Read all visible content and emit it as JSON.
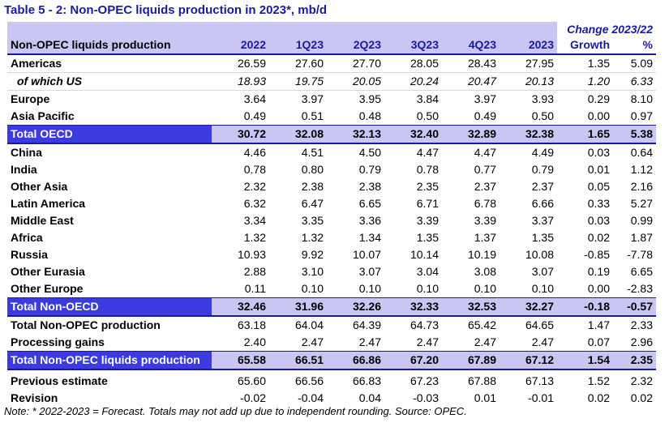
{
  "title": "Table 5 - 2: Non-OPEC liquids production in 2023*, mb/d",
  "header": {
    "change_label": "Change 2023/22",
    "row_label": "Non-OPEC liquids production",
    "columns": [
      "2022",
      "1Q23",
      "2Q23",
      "3Q23",
      "4Q23",
      "2023",
      "Growth",
      "%"
    ]
  },
  "rows": [
    {
      "label": "Americas",
      "values": [
        "26.59",
        "27.60",
        "27.70",
        "28.05",
        "28.43",
        "27.95",
        "1.35",
        "5.09"
      ],
      "kind": "data"
    },
    {
      "label": "of which US",
      "values": [
        "18.93",
        "19.75",
        "20.05",
        "20.24",
        "20.47",
        "20.13",
        "1.20",
        "6.33"
      ],
      "kind": "sub"
    },
    {
      "label": "Europe",
      "values": [
        "3.64",
        "3.97",
        "3.95",
        "3.84",
        "3.97",
        "3.93",
        "0.29",
        "8.10"
      ],
      "kind": "data"
    },
    {
      "label": "Asia Pacific",
      "values": [
        "0.49",
        "0.51",
        "0.48",
        "0.50",
        "0.49",
        "0.50",
        "0.00",
        "0.97"
      ],
      "kind": "data"
    },
    {
      "label": "Total OECD",
      "values": [
        "30.72",
        "32.08",
        "32.13",
        "32.40",
        "32.89",
        "32.38",
        "1.65",
        "5.38"
      ],
      "kind": "total"
    },
    {
      "label": "China",
      "values": [
        "4.46",
        "4.51",
        "4.50",
        "4.47",
        "4.47",
        "4.49",
        "0.03",
        "0.64"
      ],
      "kind": "data"
    },
    {
      "label": "India",
      "values": [
        "0.78",
        "0.80",
        "0.79",
        "0.78",
        "0.77",
        "0.79",
        "0.01",
        "1.12"
      ],
      "kind": "data"
    },
    {
      "label": "Other Asia",
      "values": [
        "2.32",
        "2.38",
        "2.38",
        "2.35",
        "2.37",
        "2.37",
        "0.05",
        "2.16"
      ],
      "kind": "data"
    },
    {
      "label": "Latin America",
      "values": [
        "6.32",
        "6.47",
        "6.65",
        "6.71",
        "6.78",
        "6.66",
        "0.33",
        "5.27"
      ],
      "kind": "data"
    },
    {
      "label": "Middle East",
      "values": [
        "3.34",
        "3.35",
        "3.36",
        "3.39",
        "3.39",
        "3.37",
        "0.03",
        "0.99"
      ],
      "kind": "data"
    },
    {
      "label": "Africa",
      "values": [
        "1.32",
        "1.32",
        "1.34",
        "1.35",
        "1.37",
        "1.35",
        "0.02",
        "1.87"
      ],
      "kind": "data"
    },
    {
      "label": "Russia",
      "values": [
        "10.93",
        "9.92",
        "10.07",
        "10.14",
        "10.19",
        "10.08",
        "-0.85",
        "-7.78"
      ],
      "kind": "data"
    },
    {
      "label": "Other Eurasia",
      "values": [
        "2.88",
        "3.10",
        "3.07",
        "3.04",
        "3.08",
        "3.07",
        "0.19",
        "6.65"
      ],
      "kind": "data"
    },
    {
      "label": "Other Europe",
      "values": [
        "0.11",
        "0.10",
        "0.10",
        "0.10",
        "0.10",
        "0.10",
        "0.00",
        "-2.83"
      ],
      "kind": "data"
    },
    {
      "label": "Total Non-OECD",
      "values": [
        "32.46",
        "31.96",
        "32.26",
        "32.33",
        "32.53",
        "32.27",
        "-0.18",
        "-0.57"
      ],
      "kind": "total"
    },
    {
      "label": "Total Non-OPEC production",
      "values": [
        "63.18",
        "64.04",
        "64.39",
        "64.73",
        "65.42",
        "64.65",
        "1.47",
        "2.33"
      ],
      "kind": "data"
    },
    {
      "label": "Processing gains",
      "values": [
        "2.40",
        "2.47",
        "2.47",
        "2.47",
        "2.47",
        "2.47",
        "0.07",
        "2.96"
      ],
      "kind": "data"
    },
    {
      "label": "Total Non-OPEC liquids production",
      "values": [
        "65.58",
        "66.51",
        "66.86",
        "67.20",
        "67.89",
        "67.12",
        "1.54",
        "2.35"
      ],
      "kind": "total"
    },
    {
      "label": "Previous estimate",
      "values": [
        "65.60",
        "66.56",
        "66.83",
        "67.23",
        "67.88",
        "67.13",
        "1.52",
        "2.32"
      ],
      "kind": "data",
      "gap_before": true
    },
    {
      "label": "Revision",
      "values": [
        "-0.02",
        "-0.04",
        "0.04",
        "-0.03",
        "0.01",
        "-0.01",
        "0.02",
        "0.02"
      ],
      "kind": "data"
    }
  ],
  "note": "Note: * 2022-2023 = Forecast. Totals may not add up due to independent rounding. Source: OPEC.",
  "colors": {
    "header_bg": "#c9c6f3",
    "total_label_bg": "#3b3bdf",
    "title": "#1a1aa0"
  }
}
